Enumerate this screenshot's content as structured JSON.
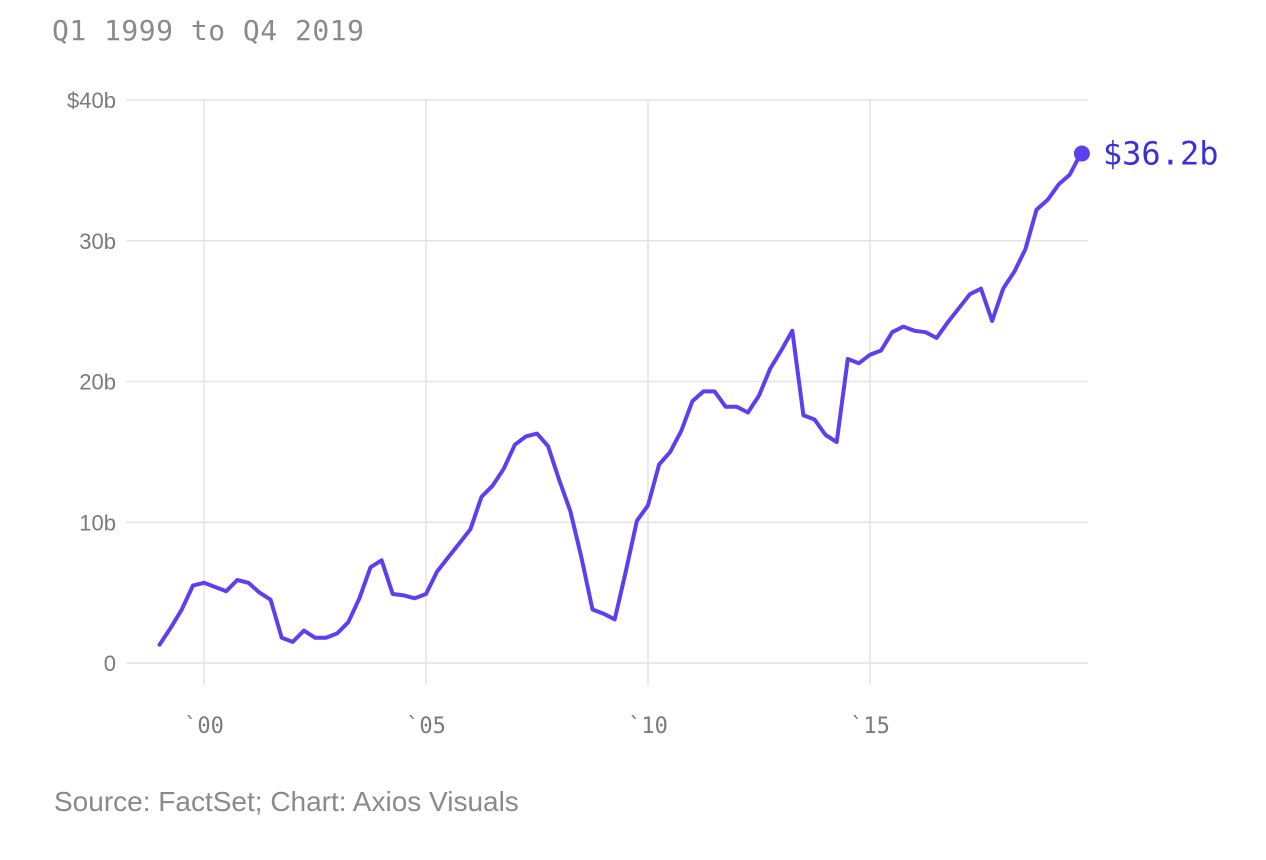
{
  "header": {
    "subtitle": "Q1 1999 to Q4 2019"
  },
  "footer": {
    "source": "Source: FactSet; Chart: Axios Visuals"
  },
  "colors": {
    "line": "#5b3ff0",
    "grid": "#e4e4e4",
    "end_label": "#3a2ee0"
  },
  "chart_data": {
    "type": "line",
    "title": "",
    "subtitle": "Q1 1999 to Q4 2019",
    "xlabel": "",
    "ylabel": "",
    "ylim": [
      0,
      40
    ],
    "xlim": [
      1999.0,
      2019.75
    ],
    "grid": true,
    "y_ticks": [
      {
        "value": 0,
        "label": "0"
      },
      {
        "value": 10,
        "label": "10b"
      },
      {
        "value": 20,
        "label": "20b"
      },
      {
        "value": 30,
        "label": "30b"
      },
      {
        "value": 40,
        "label": "$40b"
      }
    ],
    "x_ticks": [
      {
        "value": 2000,
        "label": "`00"
      },
      {
        "value": 2005,
        "label": "`05"
      },
      {
        "value": 2010,
        "label": "`10"
      },
      {
        "value": 2015,
        "label": "`15"
      }
    ],
    "end_label": "$36.2b",
    "series": [
      {
        "x": [
          1999.0,
          1999.25,
          1999.5,
          1999.75,
          2000.0,
          2000.25,
          2000.5,
          2000.75,
          2001.0,
          2001.25,
          2001.5,
          2001.75,
          2002.0,
          2002.25,
          2002.5,
          2002.75,
          2003.0,
          2003.25,
          2003.5,
          2003.75,
          2004.0,
          2004.25,
          2004.5,
          2004.75,
          2005.0,
          2005.25,
          2005.5,
          2005.75,
          2006.0,
          2006.25,
          2006.5,
          2006.75,
          2007.0,
          2007.25,
          2007.5,
          2007.75,
          2008.0,
          2008.25,
          2008.5,
          2008.75,
          2009.0,
          2009.25,
          2009.5,
          2009.75,
          2010.0,
          2010.25,
          2010.5,
          2010.75,
          2011.0,
          2011.25,
          2011.5,
          2011.75,
          2012.0,
          2012.25,
          2012.5,
          2012.75,
          2013.0,
          2013.25,
          2013.5,
          2013.75,
          2014.0,
          2014.25,
          2014.5,
          2014.75,
          2015.0,
          2015.25,
          2015.5,
          2015.75,
          2016.0,
          2016.25,
          2016.5,
          2016.75,
          2017.0,
          2017.25,
          2017.5,
          2017.75,
          2018.0,
          2018.25,
          2018.5,
          2018.75,
          2019.0,
          2019.25,
          2019.5,
          2019.75
        ],
        "values": [
          1.3,
          2.5,
          3.8,
          5.5,
          5.7,
          5.4,
          5.1,
          5.9,
          5.7,
          5.0,
          4.5,
          1.8,
          1.5,
          2.3,
          1.8,
          1.8,
          2.1,
          2.9,
          4.6,
          6.8,
          7.3,
          4.9,
          4.8,
          4.6,
          4.9,
          6.5,
          7.5,
          8.5,
          9.5,
          11.8,
          12.6,
          13.8,
          15.5,
          16.1,
          16.3,
          15.4,
          13.0,
          10.8,
          7.5,
          3.8,
          3.5,
          3.1,
          6.5,
          10.1,
          11.2,
          14.1,
          15.0,
          16.5,
          18.6,
          19.3,
          19.3,
          18.2,
          18.2,
          17.8,
          19.0,
          20.9,
          22.2,
          23.6,
          17.6,
          17.3,
          16.2,
          15.7,
          21.6,
          21.3,
          21.9,
          22.2,
          23.5,
          23.9,
          23.6,
          23.5,
          23.1,
          24.2,
          25.2,
          26.2,
          26.6,
          24.3,
          26.6,
          27.8,
          29.4,
          32.2,
          32.9,
          34.0,
          34.7,
          36.2
        ]
      }
    ]
  }
}
